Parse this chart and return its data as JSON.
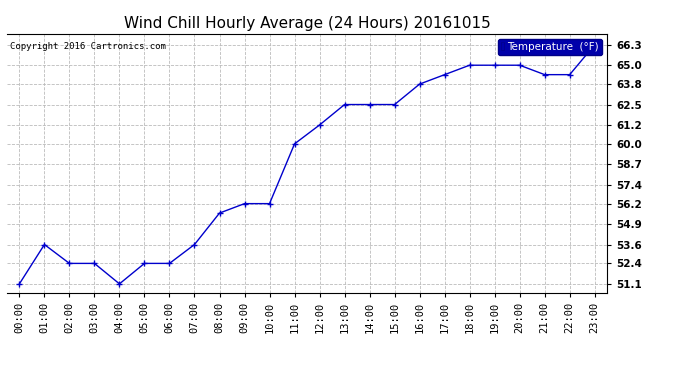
{
  "title": "Wind Chill Hourly Average (24 Hours) 20161015",
  "copyright": "Copyright 2016 Cartronics.com",
  "legend_label": "Temperature  (°F)",
  "hours": [
    "00:00",
    "01:00",
    "02:00",
    "03:00",
    "04:00",
    "05:00",
    "06:00",
    "07:00",
    "08:00",
    "09:00",
    "10:00",
    "11:00",
    "12:00",
    "13:00",
    "14:00",
    "15:00",
    "16:00",
    "17:00",
    "18:00",
    "19:00",
    "20:00",
    "21:00",
    "22:00",
    "23:00"
  ],
  "values": [
    51.1,
    53.6,
    52.4,
    52.4,
    51.1,
    52.4,
    52.4,
    53.6,
    55.6,
    56.2,
    56.2,
    60.0,
    61.2,
    62.5,
    62.5,
    62.5,
    63.8,
    64.4,
    65.0,
    65.0,
    65.0,
    64.4,
    64.4,
    66.3
  ],
  "ylim_min": 50.55,
  "ylim_max": 67.0,
  "yticks": [
    51.1,
    52.4,
    53.6,
    54.9,
    56.2,
    57.4,
    58.7,
    60.0,
    61.2,
    62.5,
    63.8,
    65.0,
    66.3
  ],
  "line_color": "#0000cc",
  "marker_color": "#0000cc",
  "bg_color": "#ffffff",
  "plot_bg_color": "#ffffff",
  "grid_color": "#bbbbbb",
  "title_fontsize": 11,
  "tick_fontsize": 7.5,
  "legend_bg": "#0000aa",
  "legend_fg": "#ffffff"
}
